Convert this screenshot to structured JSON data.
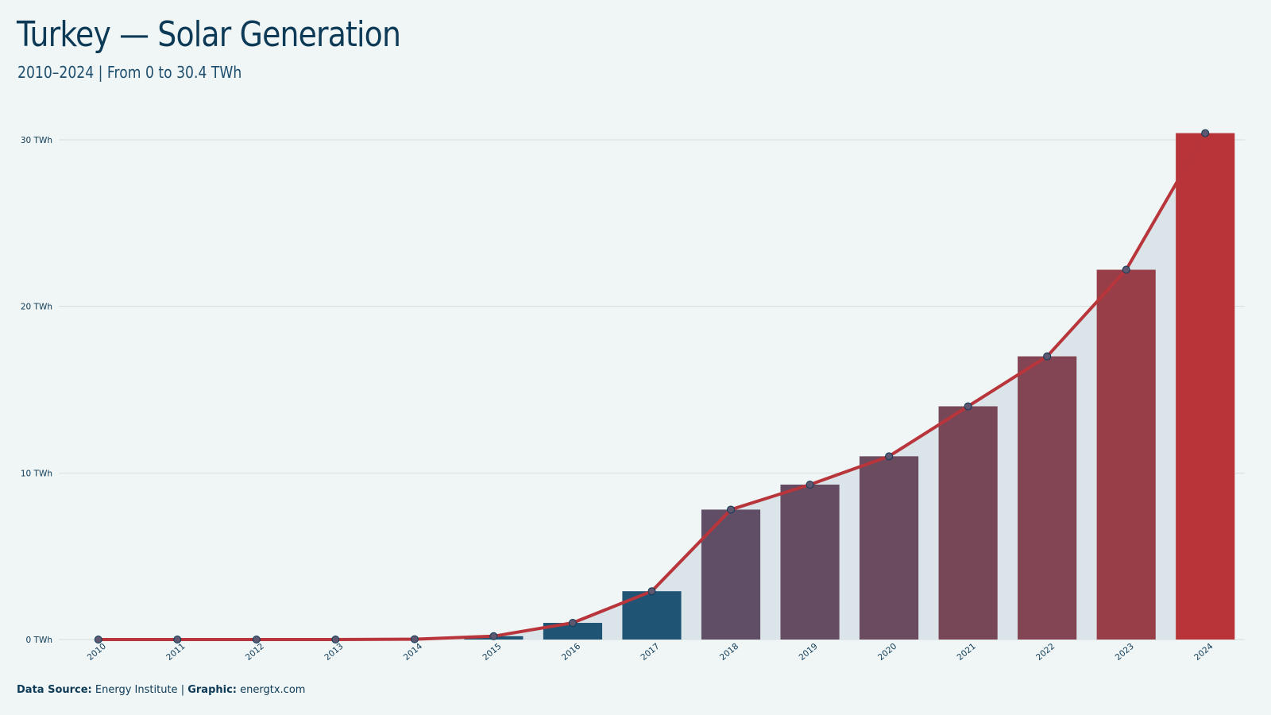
{
  "header": {
    "title": "Turkey — Solar Generation",
    "subtitle": "2010–2024 | From 0 to 30.4 TWh"
  },
  "footer": {
    "source_label": "Data Source:",
    "source_value": "Energy Institute",
    "separator": "|",
    "graphic_label": "Graphic:",
    "graphic_value": "energtx.com"
  },
  "colors": {
    "background": "#f0f5f5",
    "area_fill": "#dbe4e8",
    "line": "#b8353b",
    "bar_low": "#1f5475",
    "bar_mid": "#5c4f66",
    "bar_high": "#b83438",
    "marker": "#5d5870",
    "grid": "#d5dddd"
  },
  "chart_data": {
    "type": "bar",
    "title": "Turkey — Solar Generation",
    "xlabel": "",
    "ylabel": "",
    "unit": "TWh",
    "ylim": [
      0,
      31
    ],
    "yticks": [
      0,
      10,
      20,
      30
    ],
    "ytick_labels": [
      "0 TWh",
      "10 TWh",
      "20 TWh",
      "30 TWh"
    ],
    "grid": true,
    "categories": [
      "2010",
      "2011",
      "2012",
      "2013",
      "2014",
      "2015",
      "2016",
      "2017",
      "2018",
      "2019",
      "2020",
      "2021",
      "2022",
      "2023",
      "2024"
    ],
    "values": [
      0,
      0,
      0,
      0,
      0.02,
      0.2,
      1.0,
      2.9,
      7.8,
      9.3,
      11.0,
      14.0,
      17.0,
      22.2,
      30.4
    ],
    "overlay": {
      "type": "line+area",
      "values": [
        0,
        0,
        0,
        0,
        0.02,
        0.2,
        1.0,
        2.9,
        7.8,
        9.3,
        11.0,
        14.0,
        17.0,
        22.2,
        30.4
      ]
    }
  }
}
